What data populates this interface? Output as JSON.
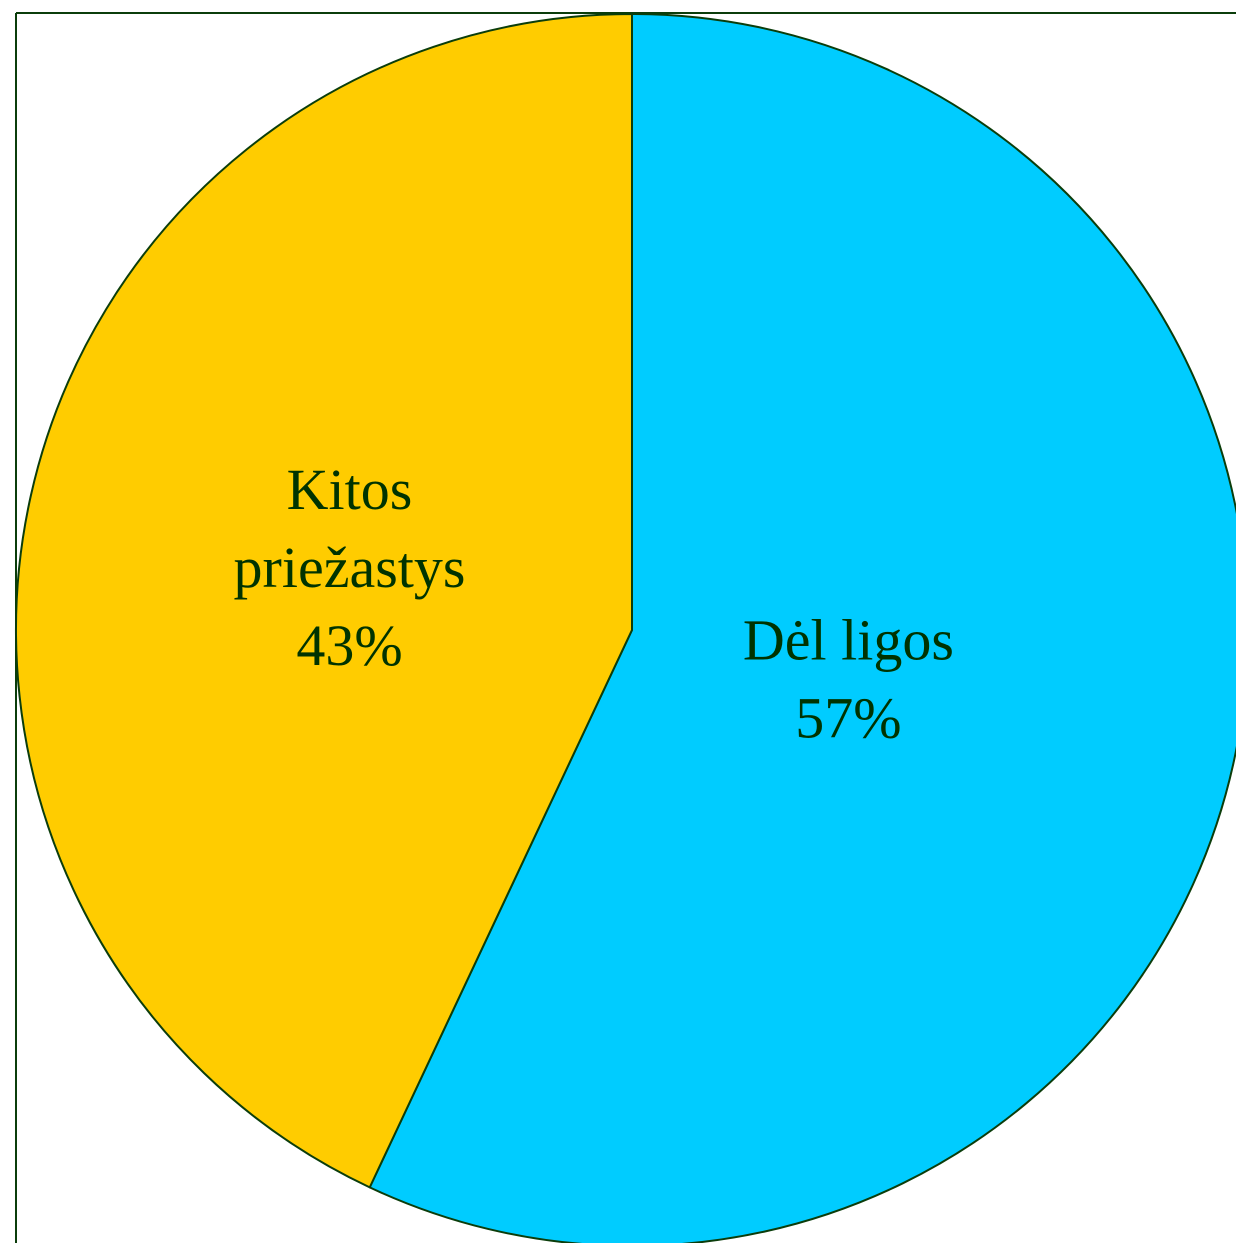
{
  "chart_data": {
    "type": "pie",
    "start_angle_deg": 0,
    "direction": "clockwise",
    "slices": [
      {
        "label": "Dėl ligos",
        "value": 57,
        "value_label": "57%",
        "color": "#00ccff"
      },
      {
        "label": "Kitos priežastys",
        "label_lines": [
          "Kitos",
          "priežastys"
        ],
        "value": 43,
        "value_label": "43%",
        "color": "#ffcc00"
      }
    ],
    "legend": "none",
    "stroke_color": "#0b3d0b",
    "label_color": "#003300"
  }
}
